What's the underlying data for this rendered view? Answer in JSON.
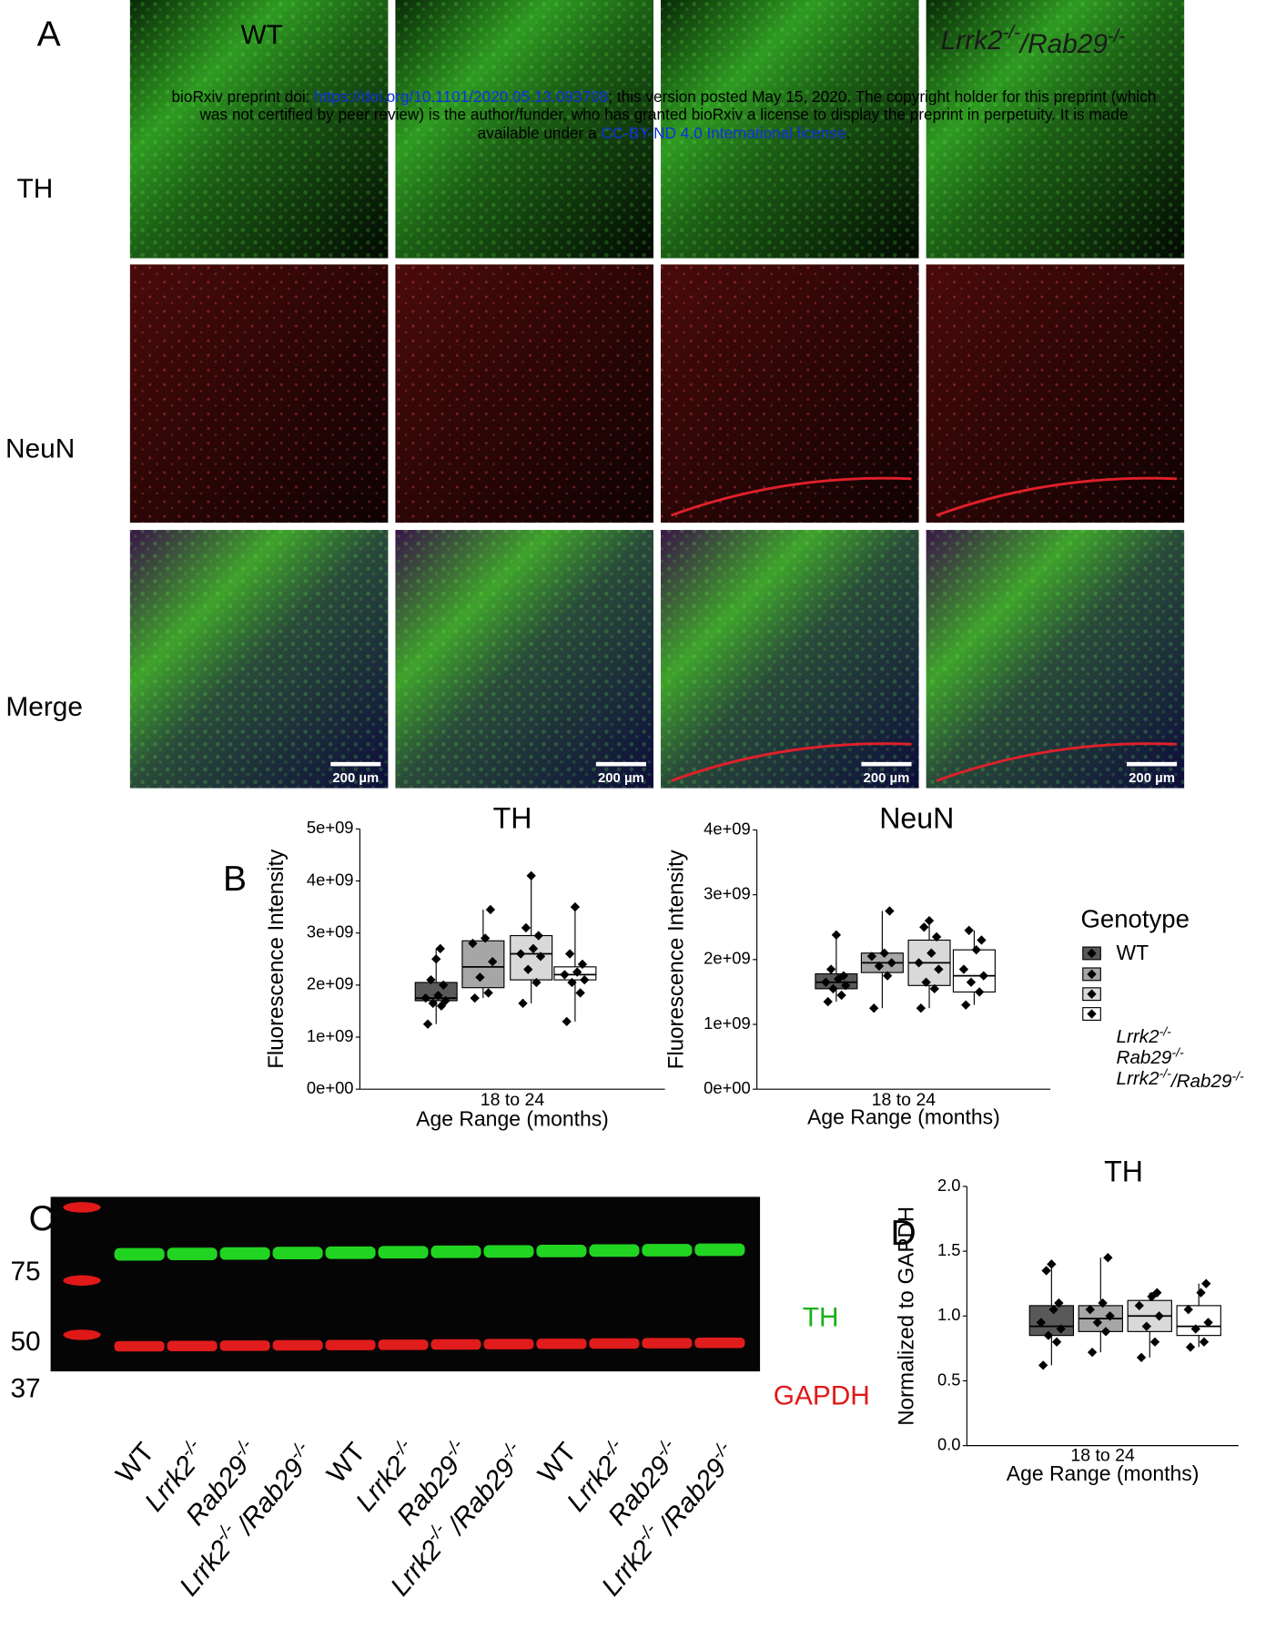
{
  "panels": {
    "a": "A",
    "b": "B",
    "c": "C",
    "d": "D"
  },
  "micrographs": {
    "rows": [
      "TH",
      "NeuN",
      "Merge"
    ],
    "column_headers": [
      [
        "WT"
      ],
      [
        "Lrrk2",
        "-/-",
        "/Rab29",
        "-/-"
      ]
    ],
    "scale_bar": "200 µm"
  },
  "watermark": {
    "lines": [
      [
        {
          "text": "bioRxiv preprint doi: "
        },
        {
          "text": "https://doi.org/10.1101/2020.05.13.093708",
          "link": true
        },
        {
          "text": "; this version posted May 15, 2020. The copyright holder for this preprint (which"
        }
      ],
      [
        {
          "text": "was not certified by peer review) is the author/funder, who has granted bioRxiv a license to display the preprint in perpetuity. It is made"
        }
      ],
      [
        {
          "text": "available under a "
        },
        {
          "text": "CC-BY-ND 4.0 International license",
          "link": true
        },
        {
          "text": "."
        }
      ]
    ]
  },
  "blot": {
    "markers": [
      75,
      50,
      37
    ],
    "bands": {
      "top": "TH",
      "bottom": "GAPDH"
    },
    "lanes": [
      [
        "WT"
      ],
      [
        "Lrrk2",
        "-/-"
      ],
      [
        "Rab29",
        "-/-"
      ],
      [
        "Lrrk2",
        "-/- ",
        "/Rab29",
        "-/-"
      ],
      [
        "WT"
      ],
      [
        "Lrrk2",
        "-/-"
      ],
      [
        "Rab29",
        "-/-"
      ],
      [
        "Lrrk2",
        "-/- ",
        "/Rab29",
        "-/-"
      ],
      [
        "WT"
      ],
      [
        "Lrrk2",
        "-/-"
      ],
      [
        "Rab29",
        "-/-"
      ],
      [
        "Lrrk2",
        "-/- ",
        "/Rab29",
        "-/-"
      ]
    ]
  },
  "chart_data": [
    {
      "type": "box",
      "title": "TH",
      "x_label": "Age Range (months)",
      "y_label": "Fluorescence Intensity",
      "categories": [
        "18 to 24"
      ],
      "ylim": [
        0,
        5000000000
      ],
      "yticks": [
        {
          "value": 0,
          "label": "0e+00"
        },
        {
          "value": 1000000000,
          "label": "1e+09"
        },
        {
          "value": 2000000000,
          "label": "2e+09"
        },
        {
          "value": 3000000000,
          "label": "3e+09"
        },
        {
          "value": 4000000000,
          "label": "4e+09"
        },
        {
          "value": 5000000000,
          "label": "5e+09"
        }
      ],
      "legend_title": "Genotype",
      "series": [
        {
          "name": [
            "WT"
          ],
          "color": "#595959",
          "whisker_low": 1250000000,
          "q1": 1700000000,
          "median": 1750000000,
          "q3": 2050000000,
          "whisker_high": 2700000000,
          "points": [
            1250000000,
            1600000000,
            1650000000,
            1700000000,
            1750000000,
            1800000000,
            2000000000,
            2100000000,
            2500000000,
            2700000000
          ]
        },
        {
          "name": [
            "Lrrk2",
            "-/-"
          ],
          "color": "#a6a6a6",
          "whisker_low": 1750000000,
          "q1": 1950000000,
          "median": 2350000000,
          "q3": 2850000000,
          "whisker_high": 3450000000,
          "points": [
            1750000000,
            1850000000,
            2150000000,
            2450000000,
            2800000000,
            2900000000,
            3450000000
          ]
        },
        {
          "name": [
            "Rab29",
            "-/-"
          ],
          "color": "#d9d9d9",
          "whisker_low": 1650000000,
          "q1": 2100000000,
          "median": 2600000000,
          "q3": 2950000000,
          "whisker_high": 4100000000,
          "points": [
            1650000000,
            2050000000,
            2300000000,
            2550000000,
            2600000000,
            2700000000,
            2950000000,
            3100000000,
            4100000000
          ]
        },
        {
          "name": [
            "Lrrk2",
            "-/-",
            "/Rab29",
            "-/-"
          ],
          "color": "#ffffff",
          "whisker_low": 1300000000,
          "q1": 2100000000,
          "median": 2200000000,
          "q3": 2350000000,
          "whisker_high": 3500000000,
          "points": [
            1300000000,
            1850000000,
            2050000000,
            2100000000,
            2200000000,
            2250000000,
            2400000000,
            2600000000,
            3500000000
          ]
        }
      ]
    },
    {
      "type": "box",
      "title": "NeuN",
      "x_label": "Age Range (months)",
      "y_label": "Fluorescence Intensity",
      "categories": [
        "18 to 24"
      ],
      "ylim": [
        0,
        4000000000
      ],
      "yticks": [
        {
          "value": 0,
          "label": "0e+00"
        },
        {
          "value": 1000000000,
          "label": "1e+09"
        },
        {
          "value": 2000000000,
          "label": "2e+09"
        },
        {
          "value": 3000000000,
          "label": "3e+09"
        },
        {
          "value": 4000000000,
          "label": "4e+09"
        }
      ],
      "series": [
        {
          "color": "#595959",
          "whisker_low": 1350000000,
          "q1": 1550000000,
          "median": 1650000000,
          "q3": 1780000000,
          "whisker_high": 2380000000,
          "points": [
            1350000000,
            1450000000,
            1550000000,
            1600000000,
            1650000000,
            1700000000,
            1750000000,
            1850000000,
            2380000000
          ]
        },
        {
          "color": "#a6a6a6",
          "whisker_low": 1250000000,
          "q1": 1800000000,
          "median": 1950000000,
          "q3": 2100000000,
          "whisker_high": 2750000000,
          "points": [
            1250000000,
            1750000000,
            1900000000,
            1950000000,
            2050000000,
            2100000000,
            2750000000
          ]
        },
        {
          "color": "#d9d9d9",
          "whisker_low": 1250000000,
          "q1": 1600000000,
          "median": 1950000000,
          "q3": 2300000000,
          "whisker_high": 2600000000,
          "points": [
            1250000000,
            1550000000,
            1650000000,
            1850000000,
            1950000000,
            2100000000,
            2350000000,
            2500000000,
            2600000000
          ]
        },
        {
          "color": "#ffffff",
          "whisker_low": 1300000000,
          "q1": 1500000000,
          "median": 1750000000,
          "q3": 2150000000,
          "whisker_high": 2450000000,
          "points": [
            1300000000,
            1500000000,
            1650000000,
            1750000000,
            1850000000,
            2150000000,
            2300000000,
            2450000000
          ]
        }
      ]
    },
    {
      "type": "box",
      "title": "TH",
      "x_label": "Age Range (months)",
      "y_label": "Normalized to GAPDH",
      "categories": [
        "18 to 24"
      ],
      "ylim": [
        0,
        2
      ],
      "yticks": [
        {
          "value": 0,
          "label": "0.0"
        },
        0.5,
        {
          "value": 1,
          "label": "1.0"
        },
        1.5,
        {
          "value": 2,
          "label": "2.0"
        }
      ],
      "series": [
        {
          "color": "#595959",
          "whisker_low": 0.62,
          "q1": 0.85,
          "median": 0.92,
          "q3": 1.08,
          "whisker_high": 1.4,
          "points": [
            0.62,
            0.8,
            0.85,
            0.9,
            0.95,
            1.05,
            1.1,
            1.35,
            1.4
          ]
        },
        {
          "color": "#a6a6a6",
          "whisker_low": 0.72,
          "q1": 0.88,
          "median": 0.98,
          "q3": 1.08,
          "whisker_high": 1.45,
          "points": [
            0.72,
            0.88,
            0.95,
            1.0,
            1.05,
            1.1,
            1.45
          ]
        },
        {
          "color": "#d9d9d9",
          "whisker_low": 0.68,
          "q1": 0.88,
          "median": 1.0,
          "q3": 1.12,
          "whisker_high": 1.18,
          "points": [
            0.68,
            0.8,
            0.92,
            1.0,
            1.08,
            1.15,
            1.18
          ]
        },
        {
          "color": "#ffffff",
          "whisker_low": 0.76,
          "q1": 0.85,
          "median": 0.92,
          "q3": 1.08,
          "whisker_high": 1.25,
          "points": [
            0.76,
            0.8,
            0.9,
            0.95,
            1.05,
            1.18,
            1.25
          ]
        }
      ]
    }
  ]
}
